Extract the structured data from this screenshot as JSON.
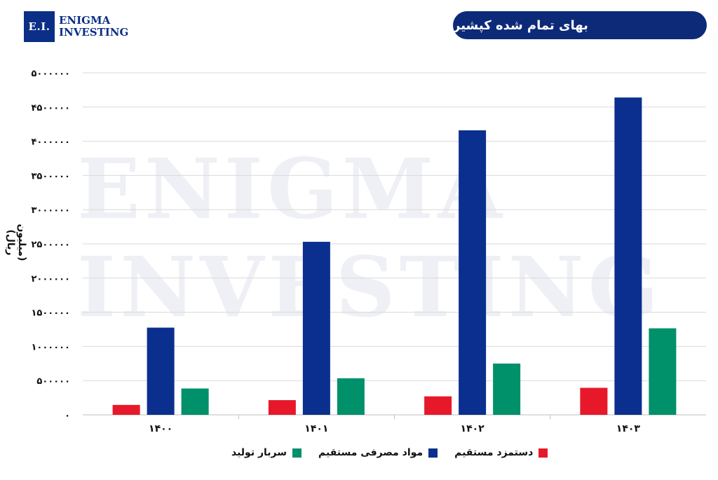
{
  "brand": {
    "logo_mark": "E.I.",
    "logo_line1": "Enigma",
    "logo_line2": "Investing"
  },
  "watermark": {
    "line1": "ENIGMA",
    "line2": "INVESTING"
  },
  "chart_data": {
    "type": "bar",
    "title": "بهای تمام شده کپشیر",
    "ylabel": "(میلیون ریال)",
    "xlabel": "",
    "categories": [
      "۱۴۰۰",
      "۱۴۰۱",
      "۱۴۰۲",
      "۱۴۰۳"
    ],
    "ylim": [
      0,
      5000000
    ],
    "yticks": [
      0,
      500000,
      1000000,
      1500000,
      2000000,
      2500000,
      3000000,
      3500000,
      4000000,
      4500000,
      5000000
    ],
    "ytick_labels": [
      "۰",
      "۵۰۰۰۰۰",
      "۱۰۰۰۰۰۰",
      "۱۵۰۰۰۰۰",
      "۲۰۰۰۰۰۰",
      "۲۵۰۰۰۰۰",
      "۳۰۰۰۰۰۰",
      "۳۵۰۰۰۰۰",
      "۴۰۰۰۰۰۰",
      "۴۵۰۰۰۰۰",
      "۵۰۰۰۰۰۰"
    ],
    "grid": true,
    "legend_position": "bottom",
    "series": [
      {
        "name": "دستمزد مستقیم",
        "color": "#e8182b",
        "values": [
          145000,
          215000,
          270000,
          395000
        ]
      },
      {
        "name": "مواد مصرفی مستقیم",
        "color": "#0b2f8f",
        "values": [
          1275000,
          2530000,
          4160000,
          4640000
        ]
      },
      {
        "name": "سربار تولید",
        "color": "#00906a",
        "values": [
          385000,
          535000,
          750000,
          1265000
        ]
      }
    ]
  }
}
